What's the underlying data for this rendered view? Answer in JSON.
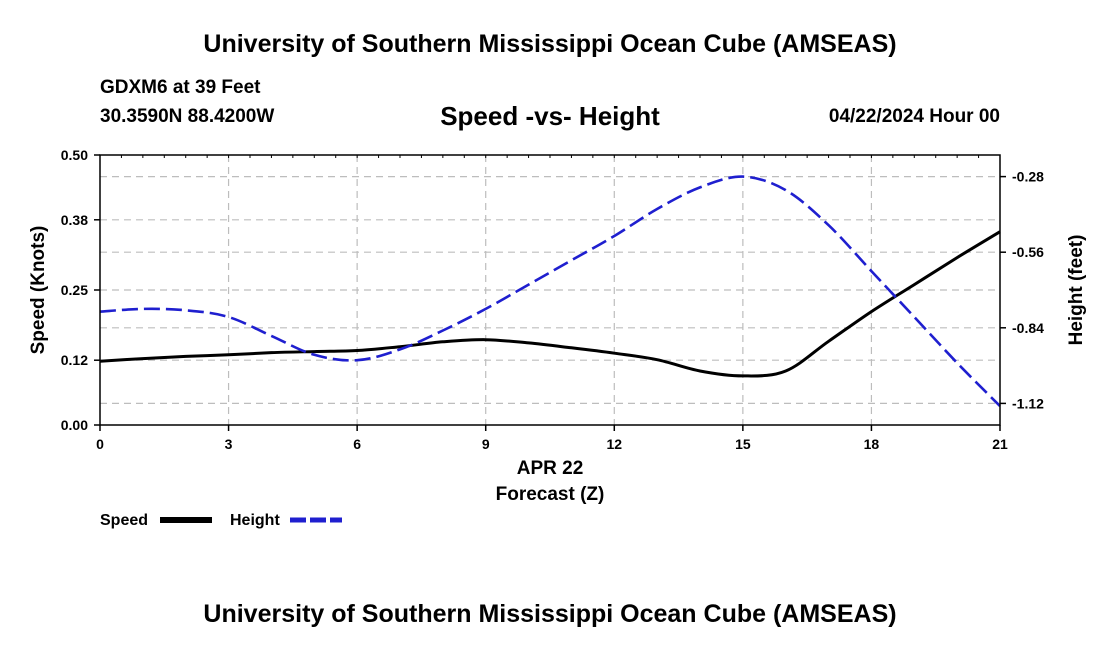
{
  "header": {
    "title": "University of Southern Mississippi Ocean Cube (AMSEAS)",
    "station": "GDXM6 at 39 Feet",
    "coordinates": "30.3590N  88.4200W",
    "subtitle": "Speed -vs- Height",
    "date": "04/22/2024 Hour 00"
  },
  "footer": {
    "title": "University of Southern Mississippi Ocean Cube (AMSEAS)"
  },
  "chart_data": {
    "type": "line",
    "title": "Speed -vs- Height",
    "xlabel_date": "APR 22",
    "xlabel": "Forecast (Z)",
    "ylabel_left": "Speed (Knots)",
    "ylabel_right": "Height (feet)",
    "xlim": [
      0,
      21
    ],
    "ylim_left": [
      0.0,
      0.5
    ],
    "ylim_right": [
      -1.2,
      -0.2
    ],
    "x_ticks": [
      "0",
      "3",
      "6",
      "9",
      "12",
      "15",
      "18",
      "21"
    ],
    "y_left_ticks": [
      "0.00",
      "0.12",
      "0.25",
      "0.38",
      "0.50"
    ],
    "y_right_ticks": [
      "-0.28",
      "-0.56",
      "-0.84",
      "-1.12"
    ],
    "grid": true,
    "legend_position": "bottom-left",
    "series": [
      {
        "name": "Speed",
        "axis": "left",
        "color": "#000000",
        "style": "solid",
        "x": [
          0,
          1,
          2,
          3,
          4,
          5,
          6,
          7,
          8,
          9,
          10,
          11,
          12,
          13,
          14,
          15,
          16,
          17,
          18,
          19,
          20,
          21
        ],
        "values": [
          0.118,
          0.123,
          0.127,
          0.13,
          0.134,
          0.136,
          0.138,
          0.145,
          0.154,
          0.158,
          0.152,
          0.143,
          0.133,
          0.121,
          0.1,
          0.091,
          0.1,
          0.155,
          0.21,
          0.26,
          0.31,
          0.358
        ]
      },
      {
        "name": "Height",
        "axis": "right",
        "color": "#1f1fcf",
        "style": "dashed",
        "x": [
          0,
          1,
          2,
          3,
          4,
          5,
          6,
          7,
          8,
          9,
          10,
          11,
          12,
          13,
          14,
          15,
          16,
          17,
          18,
          19,
          20,
          21
        ],
        "values": [
          -0.78,
          -0.77,
          -0.775,
          -0.8,
          -0.87,
          -0.94,
          -0.96,
          -0.92,
          -0.85,
          -0.77,
          -0.68,
          -0.59,
          -0.5,
          -0.4,
          -0.32,
          -0.28,
          -0.33,
          -0.46,
          -0.63,
          -0.8,
          -0.97,
          -1.13
        ]
      }
    ]
  },
  "legend": {
    "speed_label": "Speed",
    "height_label": "Height"
  }
}
